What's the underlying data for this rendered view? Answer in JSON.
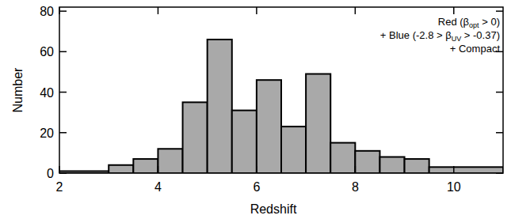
{
  "chart_data": {
    "type": "histogram",
    "x_label": "Redshift",
    "y_label": "Number",
    "annotations": [
      [
        "Red (β",
        "opt",
        " > 0)"
      ],
      [
        "+ Blue (-2.8 > β",
        "UV",
        " > -0.37)"
      ],
      [
        "+ Compact"
      ]
    ],
    "bins": [
      2,
      3,
      3.5,
      4,
      4.5,
      5,
      5.5,
      6,
      6.5,
      7,
      7.5,
      8,
      8.5,
      9,
      9.5,
      11
    ],
    "values": [
      1,
      4,
      7,
      12,
      35,
      66,
      31,
      46,
      23,
      49,
      15,
      11,
      8,
      7,
      3
    ],
    "color": "#a9a9a9",
    "xlim": [
      2,
      11
    ],
    "xticks": [
      2,
      4,
      6,
      8,
      10
    ],
    "ylim": [
      0,
      82
    ],
    "yticks": [
      0,
      20,
      40,
      60,
      80
    ],
    "grid": false
  }
}
